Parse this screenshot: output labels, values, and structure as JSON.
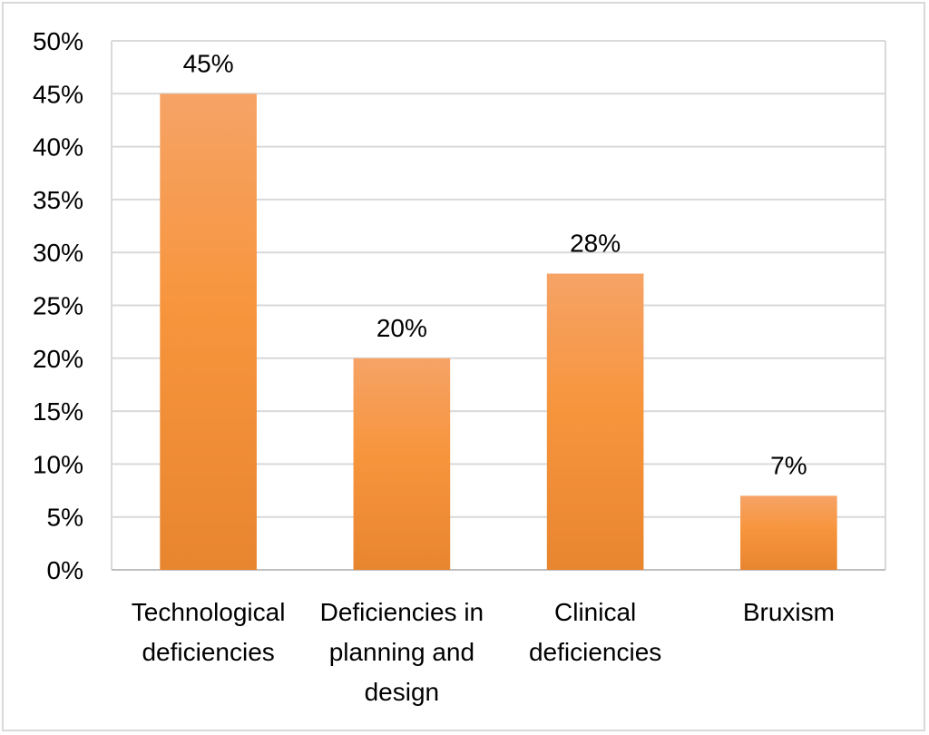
{
  "chart_data": {
    "type": "bar",
    "categories": [
      [
        "Technological",
        "deficiencies"
      ],
      [
        "Deficiencies in",
        "planning and",
        "design"
      ],
      [
        "Clinical",
        "deficiencies"
      ],
      [
        "Bruxism"
      ]
    ],
    "values": [
      45,
      20,
      28,
      7
    ],
    "data_labels": [
      "45%",
      "20%",
      "28%",
      "7%"
    ],
    "y_ticks": [
      "0%",
      "5%",
      "10%",
      "15%",
      "20%",
      "25%",
      "30%",
      "35%",
      "40%",
      "45%",
      "50%"
    ],
    "ylim": [
      0,
      50
    ],
    "y_step": 5,
    "grid": true,
    "legend": "none",
    "colors": {
      "bar_top": "#f6a366",
      "bar_mid": "#f7953d",
      "bar_bottom": "#e8852f",
      "grid": "#d9d9d9",
      "axis": "#bfbfbf"
    }
  }
}
